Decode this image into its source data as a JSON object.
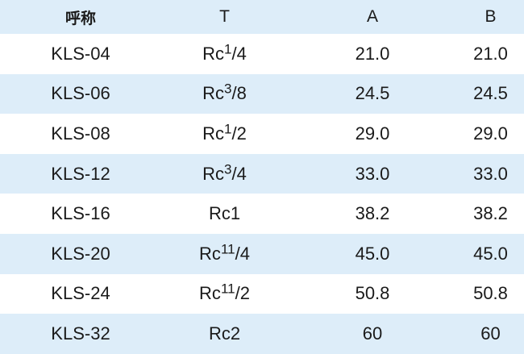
{
  "table": {
    "headers": [
      "呼称",
      "T",
      "A",
      "B"
    ],
    "rows": [
      {
        "name": "KLS-04",
        "t_base": "Rc",
        "t_sup": "1",
        "t_rest": "/4",
        "a": "21.0",
        "b": "21.0"
      },
      {
        "name": "KLS-06",
        "t_base": "Rc",
        "t_sup": "3",
        "t_rest": "/8",
        "a": "24.5",
        "b": "24.5"
      },
      {
        "name": "KLS-08",
        "t_base": "Rc",
        "t_sup": "1",
        "t_rest": "/2",
        "a": "29.0",
        "b": "29.0"
      },
      {
        "name": "KLS-12",
        "t_base": "Rc",
        "t_sup": "3",
        "t_rest": "/4",
        "a": "33.0",
        "b": "33.0"
      },
      {
        "name": "KLS-16",
        "t_base": "Rc1",
        "t_sup": "",
        "t_rest": "",
        "a": "38.2",
        "b": "38.2"
      },
      {
        "name": "KLS-20",
        "t_base": "Rc",
        "t_sup": "11",
        "t_rest": "/4",
        "a": "45.0",
        "b": "45.0"
      },
      {
        "name": "KLS-24",
        "t_base": "Rc",
        "t_sup": "11",
        "t_rest": "/2",
        "a": "50.8",
        "b": "50.8"
      },
      {
        "name": "KLS-32",
        "t_base": "Rc2",
        "t_sup": "",
        "t_rest": "",
        "a": "60",
        "b": "60"
      }
    ]
  },
  "colors": {
    "header_bg": "#ddedf9",
    "stripe_bg": "#ddedf9",
    "text": "#1a1a1a"
  }
}
